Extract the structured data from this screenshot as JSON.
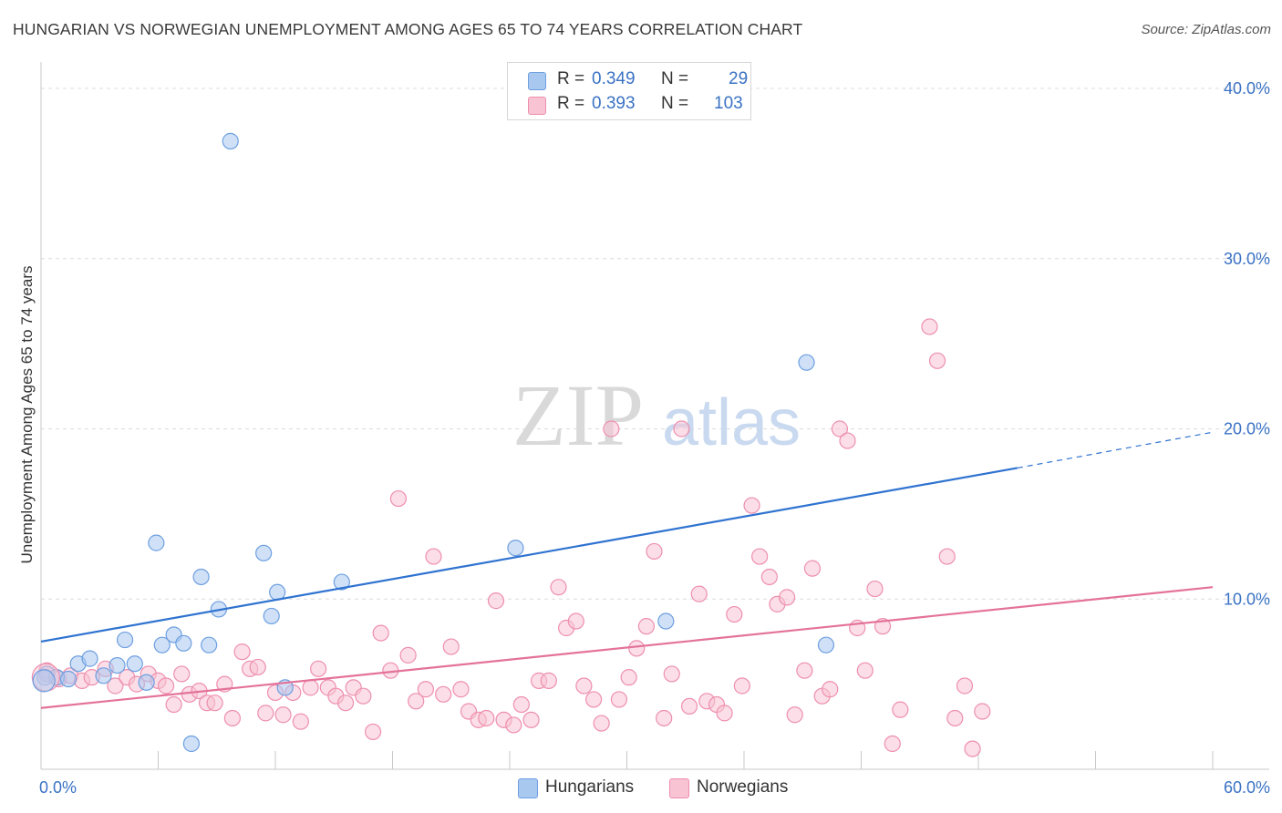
{
  "title": "HUNGARIAN VS NORWEGIAN UNEMPLOYMENT AMONG AGES 65 TO 74 YEARS CORRELATION CHART",
  "source": "Source: ZipAtlas.com",
  "watermark": {
    "zip": "ZIP",
    "atlas": "atlas"
  },
  "legend_top": {
    "rows": [
      {
        "r_label": "R =",
        "r_value": "0.349",
        "n_label": "N =",
        "n_value": "29",
        "color": "#a9c8f0",
        "border": "#6d9fe0"
      },
      {
        "r_label": "R =",
        "r_value": "0.393",
        "n_label": "N =",
        "n_value": "103",
        "color": "#f8c3d3",
        "border": "#ee8fae"
      }
    ]
  },
  "legend_bottom": {
    "items": [
      {
        "label": "Hungarians",
        "color": "#a9c8f0",
        "border": "#6d9fe0"
      },
      {
        "label": "Norwegians",
        "color": "#f8c3d3",
        "border": "#ee8fae"
      }
    ]
  },
  "chart_data": {
    "type": "scatter",
    "title": "HUNGARIAN VS NORWEGIAN UNEMPLOYMENT AMONG AGES 65 TO 74 YEARS CORRELATION CHART",
    "xlabel": "",
    "ylabel": "Unemployment Among Ages 65 to 74 years",
    "xlim": [
      0,
      60
    ],
    "ylim": [
      0,
      40
    ],
    "x_tick_labels": [
      {
        "value": 0,
        "label": "0.0%"
      },
      {
        "value": 60,
        "label": "60.0%"
      }
    ],
    "y_tick_labels": [
      {
        "value": 10,
        "label": "10.0%"
      },
      {
        "value": 20,
        "label": "20.0%"
      },
      {
        "value": 30,
        "label": "30.0%"
      },
      {
        "value": 40,
        "label": "40.0%"
      }
    ],
    "series": [
      {
        "name": "Hungarians",
        "color": "#a9c8f0",
        "stroke": "#6d9fe0",
        "line_color": "#2f73d0",
        "trend": {
          "x0": 0,
          "y0": 7.5,
          "x1": 50,
          "y1": 17.7,
          "dash_to_x": 60,
          "dash_to_y": 19.8
        },
        "points": [
          [
            0.3,
            5.6
          ],
          [
            0.8,
            5.4
          ],
          [
            1.4,
            5.3
          ],
          [
            1.9,
            6.2
          ],
          [
            2.5,
            6.5
          ],
          [
            3.2,
            5.5
          ],
          [
            3.9,
            6.1
          ],
          [
            4.3,
            7.6
          ],
          [
            4.8,
            6.2
          ],
          [
            5.4,
            5.1
          ],
          [
            5.9,
            13.3
          ],
          [
            6.2,
            7.3
          ],
          [
            6.8,
            7.9
          ],
          [
            7.3,
            7.4
          ],
          [
            7.7,
            1.5
          ],
          [
            8.2,
            11.3
          ],
          [
            8.6,
            7.3
          ],
          [
            9.1,
            9.4
          ],
          [
            9.7,
            36.9
          ],
          [
            11.4,
            12.7
          ],
          [
            11.8,
            9.0
          ],
          [
            12.1,
            10.4
          ],
          [
            12.5,
            4.8
          ],
          [
            15.4,
            11.0
          ],
          [
            24.3,
            13.0
          ],
          [
            32.0,
            8.7
          ],
          [
            39.2,
            23.9
          ],
          [
            40.2,
            7.3
          ],
          [
            0.2,
            5.4
          ]
        ]
      },
      {
        "name": "Norwegians",
        "color": "#f8c3d3",
        "stroke": "#ee8fae",
        "line_color": "#e4729a",
        "trend": {
          "x0": 0,
          "y0": 3.6,
          "x1": 60,
          "y1": 10.7
        },
        "points": [
          [
            0.3,
            5.8
          ],
          [
            0.9,
            5.3
          ],
          [
            1.5,
            5.5
          ],
          [
            2.1,
            5.2
          ],
          [
            2.6,
            5.4
          ],
          [
            3.3,
            5.9
          ],
          [
            3.8,
            4.9
          ],
          [
            4.4,
            5.4
          ],
          [
            4.9,
            5.0
          ],
          [
            5.5,
            5.6
          ],
          [
            6.0,
            5.2
          ],
          [
            6.4,
            4.9
          ],
          [
            6.8,
            3.8
          ],
          [
            7.2,
            5.6
          ],
          [
            7.6,
            4.4
          ],
          [
            8.1,
            4.6
          ],
          [
            8.5,
            3.9
          ],
          [
            8.9,
            3.9
          ],
          [
            9.4,
            5.0
          ],
          [
            9.8,
            3.0
          ],
          [
            10.3,
            6.9
          ],
          [
            10.7,
            5.9
          ],
          [
            11.1,
            6.0
          ],
          [
            11.5,
            3.3
          ],
          [
            12.0,
            4.5
          ],
          [
            12.4,
            3.2
          ],
          [
            12.9,
            4.5
          ],
          [
            13.3,
            2.8
          ],
          [
            13.8,
            4.8
          ],
          [
            14.2,
            5.9
          ],
          [
            14.7,
            4.8
          ],
          [
            15.1,
            4.3
          ],
          [
            15.6,
            3.9
          ],
          [
            16.0,
            4.8
          ],
          [
            16.5,
            4.3
          ],
          [
            17.0,
            2.2
          ],
          [
            17.4,
            8.0
          ],
          [
            17.9,
            5.8
          ],
          [
            18.3,
            15.9
          ],
          [
            18.8,
            6.7
          ],
          [
            19.2,
            4.0
          ],
          [
            19.7,
            4.7
          ],
          [
            20.1,
            12.5
          ],
          [
            20.6,
            4.4
          ],
          [
            21.0,
            7.2
          ],
          [
            21.5,
            4.7
          ],
          [
            21.9,
            3.4
          ],
          [
            22.4,
            2.9
          ],
          [
            22.8,
            3.0
          ],
          [
            23.3,
            9.9
          ],
          [
            23.7,
            2.9
          ],
          [
            24.2,
            2.6
          ],
          [
            24.6,
            3.8
          ],
          [
            25.1,
            2.9
          ],
          [
            25.5,
            5.2
          ],
          [
            26.0,
            5.2
          ],
          [
            26.5,
            10.7
          ],
          [
            26.9,
            8.3
          ],
          [
            27.4,
            8.7
          ],
          [
            27.8,
            4.9
          ],
          [
            28.3,
            4.1
          ],
          [
            28.7,
            2.7
          ],
          [
            29.2,
            20.0
          ],
          [
            29.6,
            4.1
          ],
          [
            30.1,
            5.4
          ],
          [
            30.5,
            7.1
          ],
          [
            31.0,
            8.4
          ],
          [
            31.4,
            12.8
          ],
          [
            31.9,
            3.0
          ],
          [
            32.3,
            5.6
          ],
          [
            32.8,
            20.0
          ],
          [
            33.2,
            3.7
          ],
          [
            33.7,
            10.3
          ],
          [
            34.1,
            4.0
          ],
          [
            34.6,
            3.8
          ],
          [
            35.0,
            3.3
          ],
          [
            35.5,
            9.1
          ],
          [
            35.9,
            4.9
          ],
          [
            36.4,
            15.5
          ],
          [
            36.8,
            12.5
          ],
          [
            37.3,
            11.3
          ],
          [
            37.7,
            9.7
          ],
          [
            38.2,
            10.1
          ],
          [
            38.6,
            3.2
          ],
          [
            39.1,
            5.8
          ],
          [
            39.5,
            11.8
          ],
          [
            40.0,
            4.3
          ],
          [
            40.4,
            4.7
          ],
          [
            40.9,
            20.0
          ],
          [
            41.3,
            19.3
          ],
          [
            41.8,
            8.3
          ],
          [
            42.2,
            5.8
          ],
          [
            42.7,
            10.6
          ],
          [
            43.1,
            8.4
          ],
          [
            43.6,
            1.5
          ],
          [
            44.0,
            3.5
          ],
          [
            45.5,
            26.0
          ],
          [
            45.9,
            24.0
          ],
          [
            46.4,
            12.5
          ],
          [
            46.8,
            3.0
          ],
          [
            47.3,
            4.9
          ],
          [
            47.7,
            1.2
          ],
          [
            48.2,
            3.4
          ]
        ]
      }
    ]
  }
}
